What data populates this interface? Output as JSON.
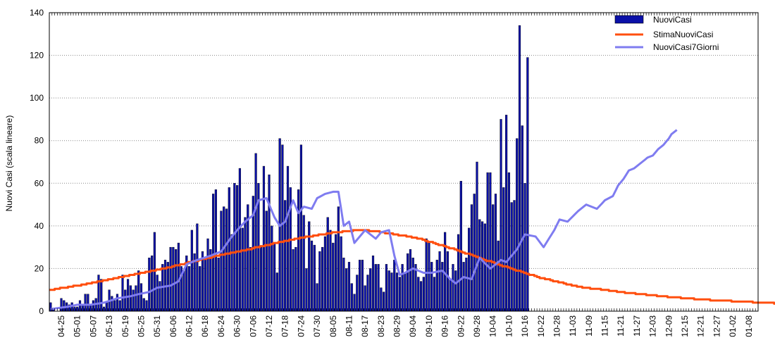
{
  "chart_data": {
    "type": "bar",
    "ylabel": "Nuovi Casi (scala lineare)",
    "xlabel": "",
    "title": "",
    "ylim": [
      0,
      140
    ],
    "yticks": [
      0,
      20,
      40,
      60,
      80,
      100,
      120,
      140
    ],
    "grid": "horizontal dotted",
    "legend_position": "top-right",
    "x_start": "04-21",
    "x_end": "01-12",
    "x_tick_labels": [
      "04-25",
      "05-01",
      "05-07",
      "05-13",
      "05-19",
      "05-25",
      "05-31",
      "06-06",
      "06-12",
      "06-18",
      "06-24",
      "06-30",
      "07-06",
      "07-12",
      "07-18",
      "07-24",
      "07-30",
      "08-05",
      "08-11",
      "08-17",
      "08-23",
      "08-29",
      "09-04",
      "09-10",
      "09-16",
      "09-22",
      "09-28",
      "10-04",
      "10-10",
      "10-16",
      "10-22",
      "10-28",
      "11-03",
      "11-09",
      "11-15",
      "11-21",
      "11-27",
      "12-03",
      "12-09",
      "12-15",
      "12-21",
      "12-27",
      "01-02",
      "01-08"
    ],
    "series": [
      {
        "name": "NuoviCasi",
        "kind": "bar",
        "color": "#0a10a8",
        "start_date": "04-21",
        "values": [
          4,
          1,
          0,
          0,
          6,
          5,
          4,
          3,
          4,
          2,
          2,
          5,
          3,
          8,
          8,
          3,
          5,
          6,
          17,
          15,
          2,
          4,
          10,
          7,
          5,
          8,
          5,
          17,
          10,
          15,
          12,
          10,
          12,
          19,
          13,
          6,
          5,
          25,
          26,
          37,
          17,
          14,
          22,
          24,
          23,
          30,
          30,
          29,
          32,
          21,
          19,
          26,
          21,
          38,
          27,
          41,
          21,
          28,
          25,
          34,
          29,
          55,
          57,
          25,
          47,
          49,
          48,
          58,
          36,
          60,
          59,
          67,
          39,
          44,
          50,
          30,
          54,
          74,
          60,
          30,
          68,
          47,
          64,
          40,
          32,
          18,
          81,
          78,
          52,
          68,
          58,
          29,
          30,
          57,
          78,
          45,
          20,
          42,
          33,
          31,
          13,
          28,
          30,
          35,
          44,
          38,
          32,
          36,
          49,
          35,
          25,
          20,
          23,
          13,
          8,
          17,
          24,
          24,
          12,
          17,
          20,
          26,
          22,
          22,
          11,
          9,
          22,
          19,
          18,
          24,
          18,
          16,
          22,
          18,
          27,
          29,
          25,
          22,
          16,
          14,
          16,
          34,
          32,
          23,
          16,
          24,
          28,
          23,
          37,
          28,
          15,
          22,
          19,
          36,
          61,
          23,
          25,
          39,
          50,
          55,
          70,
          43,
          42,
          41,
          65,
          65,
          50,
          55,
          33,
          90,
          58,
          92,
          65,
          51,
          52,
          81,
          134,
          87,
          60,
          119
        ]
      },
      {
        "name": "StimaNuoviCasi",
        "kind": "line",
        "color": "#ff4f0f",
        "knots_days": [
          0,
          15,
          31,
          46,
          61,
          76,
          92,
          107,
          116,
          122,
          137,
          153,
          168,
          183,
          198,
          214,
          229,
          244,
          259,
          275,
          290
        ],
        "knots_values": [
          10,
          13,
          17,
          21,
          25.5,
          29.5,
          34,
          37,
          38,
          37.5,
          34.5,
          28.5,
          22,
          16,
          11.5,
          9,
          7,
          5.5,
          4.5,
          3.5,
          2.5
        ]
      },
      {
        "name": "NuoviCasi7Giorni",
        "kind": "line",
        "color": "#7f7cf0",
        "knots_days": [
          0,
          6,
          10,
          15,
          20,
          25,
          30,
          33,
          37,
          40,
          45,
          48,
          51,
          55,
          60,
          64,
          68,
          70,
          73,
          76,
          78,
          81,
          84,
          86,
          88,
          91,
          93,
          95,
          98,
          100,
          103,
          106,
          108,
          110,
          112,
          114,
          116,
          118,
          120,
          122,
          124,
          127,
          129,
          131,
          133,
          136,
          140,
          143,
          147,
          150,
          152,
          155,
          158,
          161,
          165,
          169,
          171,
          175,
          178,
          182,
          185,
          189,
          191,
          194,
          198,
          201,
          205,
          208,
          211,
          213,
          215,
          217,
          219,
          221,
          224,
          226,
          228,
          230,
          232,
          233,
          235
        ],
        "knots_values": [
          1,
          2,
          3,
          3,
          4,
          6,
          7,
          8,
          9,
          11,
          12,
          14,
          22,
          24,
          26,
          28,
          35,
          38,
          42,
          45,
          52,
          53,
          44,
          40,
          42,
          52,
          46,
          49,
          48,
          53,
          55,
          56,
          56,
          40,
          42,
          32,
          35,
          38,
          36,
          34,
          37,
          38,
          26,
          17,
          18,
          20,
          18,
          18,
          19,
          15,
          13,
          16,
          15,
          25,
          20,
          24,
          23,
          29,
          36,
          35,
          30,
          38,
          43,
          42,
          47,
          50,
          48,
          52,
          54,
          59,
          62,
          66,
          67,
          69,
          72,
          73,
          76,
          78,
          81,
          83,
          85
        ]
      }
    ]
  }
}
